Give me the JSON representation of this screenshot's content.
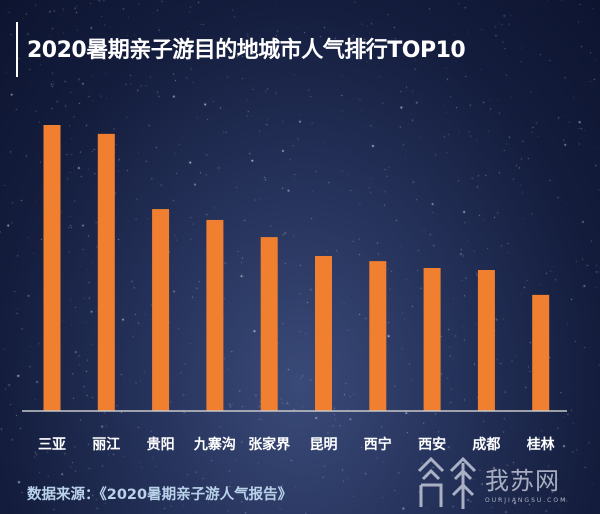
{
  "chart_data": {
    "type": "bar",
    "title": "2020暑期亲子游目的地城市人气排行TOP10",
    "categories": [
      "三亚",
      "丽江",
      "贵阳",
      "九寨沟",
      "张家界",
      "昆明",
      "西宁",
      "西安",
      "成都",
      "桂林"
    ],
    "values": [
      100,
      96.9,
      70.6,
      66.8,
      60.8,
      54.2,
      52.4,
      50.0,
      49.3,
      40.6
    ],
    "value_note_unit": "relative popularity index (no axis shown; top=100)",
    "xlabel": "",
    "ylabel": "",
    "ylim": [
      0,
      100
    ],
    "grid": false,
    "bar_color": "#f08030",
    "source": "数据来源：《2020暑期亲子游人气报告》"
  },
  "watermark": {
    "name": "我苏网",
    "domain": "OURJIANGSU.COM"
  },
  "colors": {
    "background": "#1a2548",
    "bar": "#f08030",
    "axis": "#c8c8c8",
    "text": "#ffffff",
    "source_text": "#b9d2ea"
  }
}
